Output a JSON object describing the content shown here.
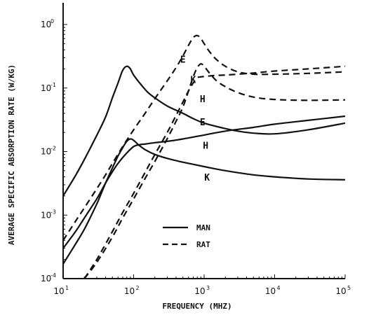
{
  "chart_data": {
    "type": "line",
    "xlabel": "FREQUENCY (MHZ)",
    "ylabel": "AVERAGE SPECIFIC ABSORPTION RATE (W/KG)",
    "x_scale": "log",
    "y_scale": "log",
    "xlim": [
      10,
      100000
    ],
    "ylim": [
      0.0001,
      1
    ],
    "x_ticks": [
      {
        "value": 10,
        "base": "10",
        "exp": "1"
      },
      {
        "value": 100,
        "base": "10",
        "exp": "2"
      },
      {
        "value": 1000,
        "base": "10",
        "exp": "3"
      },
      {
        "value": 10000,
        "base": "10",
        "exp": "4"
      },
      {
        "value": 100000,
        "base": "10",
        "exp": "5"
      }
    ],
    "y_ticks": [
      {
        "value": 0.0001,
        "base": "10",
        "exp": "-4"
      },
      {
        "value": 0.001,
        "base": "10",
        "exp": "-3"
      },
      {
        "value": 0.01,
        "base": "10",
        "exp": "-2"
      },
      {
        "value": 0.1,
        "base": "10",
        "exp": "-1"
      },
      {
        "value": 1,
        "base": "10",
        "exp": "0"
      }
    ],
    "grid": false,
    "legend": {
      "placement": "center-bottom",
      "entries": [
        {
          "label": "MAN",
          "style": "solid"
        },
        {
          "label": "RAT",
          "style": "dashed"
        }
      ]
    },
    "series": [
      {
        "label": "E",
        "group": "MAN",
        "style": "solid",
        "x": [
          10,
          15,
          20,
          30,
          40,
          50,
          60,
          70,
          80,
          90,
          100,
          130,
          160,
          200,
          300,
          500,
          700,
          1000,
          2000,
          3000,
          5000,
          10000,
          30000,
          100000
        ],
        "y": [
          0.002,
          0.0042,
          0.0075,
          0.018,
          0.035,
          0.07,
          0.12,
          0.19,
          0.22,
          0.2,
          0.16,
          0.11,
          0.085,
          0.07,
          0.052,
          0.04,
          0.033,
          0.028,
          0.023,
          0.021,
          0.0195,
          0.019,
          0.022,
          0.028
        ]
      },
      {
        "label": "H",
        "group": "MAN",
        "style": "solid",
        "x": [
          10,
          15,
          20,
          30,
          40,
          50,
          60,
          80,
          100,
          120,
          150,
          200,
          300,
          500,
          1000,
          2000,
          5000,
          10000,
          30000,
          100000
        ],
        "y": [
          0.0003,
          0.00055,
          0.0009,
          0.0018,
          0.0032,
          0.0048,
          0.0065,
          0.0095,
          0.012,
          0.0128,
          0.0132,
          0.0138,
          0.0145,
          0.0158,
          0.0182,
          0.021,
          0.024,
          0.027,
          0.031,
          0.036
        ]
      },
      {
        "label": "K",
        "group": "MAN",
        "style": "solid",
        "x": [
          10,
          15,
          20,
          30,
          40,
          50,
          60,
          70,
          80,
          90,
          100,
          120,
          150,
          200,
          300,
          500,
          1000,
          2000,
          5000,
          10000,
          30000,
          100000
        ],
        "y": [
          0.00017,
          0.00035,
          0.0006,
          0.0015,
          0.0032,
          0.0055,
          0.0085,
          0.0115,
          0.0145,
          0.0158,
          0.015,
          0.0125,
          0.0105,
          0.009,
          0.0078,
          0.0068,
          0.0058,
          0.005,
          0.0043,
          0.004,
          0.0037,
          0.0036
        ]
      },
      {
        "label": "E",
        "group": "RAT",
        "style": "dashed",
        "x": [
          10,
          15,
          20,
          30,
          40,
          50,
          70,
          100,
          150,
          200,
          300,
          400,
          500,
          600,
          700,
          800,
          900,
          1000,
          1200,
          1500,
          2000,
          3000,
          5000,
          10000,
          30000,
          100000
        ],
        "y": [
          0.0004,
          0.0008,
          0.0013,
          0.0026,
          0.0043,
          0.0065,
          0.012,
          0.022,
          0.042,
          0.068,
          0.13,
          0.21,
          0.32,
          0.47,
          0.62,
          0.67,
          0.6,
          0.5,
          0.37,
          0.28,
          0.22,
          0.18,
          0.165,
          0.165,
          0.17,
          0.18
        ]
      },
      {
        "label": "H",
        "group": "RAT",
        "style": "dashed",
        "x": [
          20,
          30,
          50,
          70,
          100,
          150,
          200,
          300,
          400,
          500,
          600,
          700,
          800,
          900,
          1000,
          1200,
          1500,
          2000,
          3000,
          5000,
          10000,
          30000,
          100000
        ],
        "y": [
          0.0001,
          0.0002,
          0.00055,
          0.0011,
          0.0022,
          0.005,
          0.009,
          0.02,
          0.037,
          0.06,
          0.09,
          0.12,
          0.145,
          0.15,
          0.152,
          0.155,
          0.158,
          0.16,
          0.165,
          0.172,
          0.185,
          0.2,
          0.22
        ]
      },
      {
        "label": "K",
        "group": "RAT",
        "style": "dashed",
        "x": [
          20,
          30,
          50,
          70,
          100,
          150,
          200,
          300,
          400,
          500,
          600,
          700,
          800,
          900,
          1000,
          1200,
          1500,
          2000,
          3000,
          5000,
          10000,
          30000,
          100000
        ],
        "y": [
          0.0001,
          0.00018,
          0.00045,
          0.0009,
          0.0018,
          0.004,
          0.007,
          0.016,
          0.03,
          0.05,
          0.09,
          0.15,
          0.21,
          0.24,
          0.22,
          0.17,
          0.13,
          0.105,
          0.085,
          0.072,
          0.066,
          0.064,
          0.065
        ]
      }
    ],
    "curve_labels": [
      {
        "text": "E",
        "x": 500,
        "y": 0.25
      },
      {
        "text": "K",
        "x": 700,
        "y": 0.12
      },
      {
        "text": "H",
        "x": 950,
        "y": 0.06
      },
      {
        "text": "E",
        "x": 950,
        "y": 0.026
      },
      {
        "text": "H",
        "x": 1050,
        "y": 0.011
      },
      {
        "text": "K",
        "x": 1100,
        "y": 0.0035
      }
    ]
  }
}
